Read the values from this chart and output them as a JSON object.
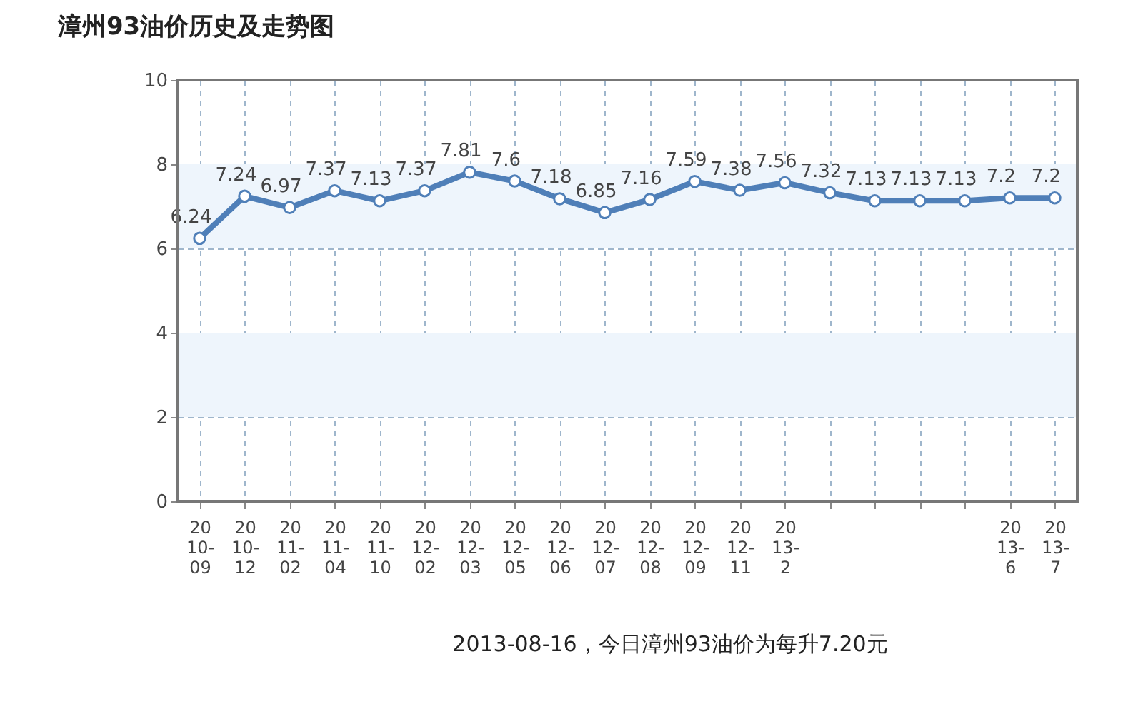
{
  "chart_data": {
    "type": "line",
    "title": "漳州93油价历史及走势图",
    "categories": [
      "2010-09",
      "2010-12",
      "2011-02",
      "2011-04",
      "2011-10",
      "2012-02",
      "2012-03",
      "2012-05",
      "2012-06",
      "2012-07",
      "2012-08",
      "2012-09",
      "2012-11",
      "2013-2",
      null,
      null,
      null,
      null,
      "2013-6",
      "2013-7"
    ],
    "series": [
      {
        "color": "#4f7fb8",
        "values": [
          6.24,
          7.24,
          6.97,
          7.37,
          7.13,
          7.37,
          7.81,
          7.6,
          7.18,
          6.85,
          7.16,
          7.59,
          7.38,
          7.56,
          7.32,
          7.13,
          7.13,
          7.13,
          7.2,
          7.2
        ]
      }
    ],
    "ylim": [
      0,
      10
    ],
    "yticks": [
      0,
      2,
      4,
      6,
      8,
      10
    ],
    "bands": [
      {
        "axis": "y",
        "from": 2,
        "to": 4,
        "color": "#eef5fc"
      },
      {
        "axis": "y",
        "from": 6,
        "to": 8,
        "color": "#eef5fc"
      }
    ],
    "grid": true,
    "marker": "circle",
    "line_style": "solid",
    "data_labels": true,
    "annotations": [
      "2013-08-16，今日漳州93油价为每升7.20元"
    ]
  }
}
